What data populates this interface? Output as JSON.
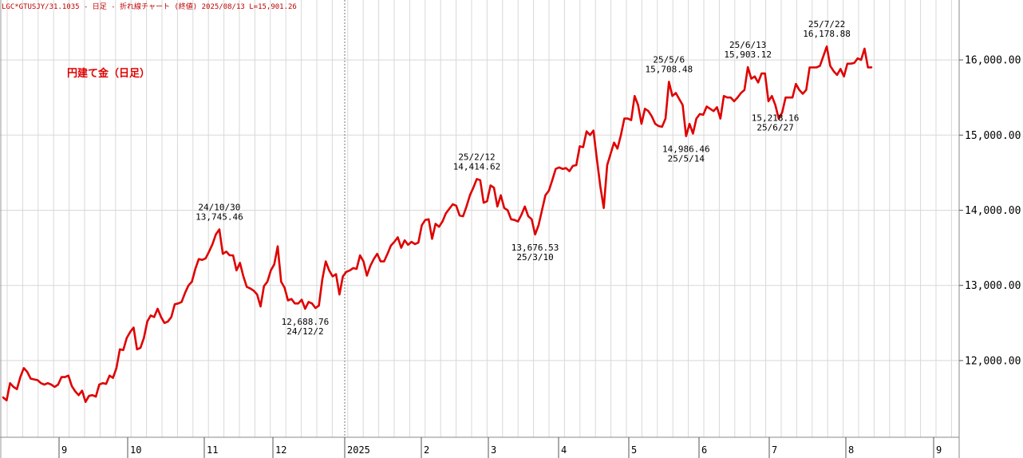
{
  "header": {
    "text": "LGC*GTUSJY/31.1035 - 日足 - 折れ線チャート (終値)  2025/08/13 L=15,901.26"
  },
  "colors": {
    "line": "#e00000",
    "grid": "#d8d8d8",
    "dotted": "#777777",
    "header": "#c00000"
  },
  "chart_data": {
    "type": "line",
    "title": "円建て金（日足）",
    "y_axis": {
      "ticks": [
        "12,000.00",
        "13,000.00",
        "14,000.00",
        "15,000.00",
        "16,000.00"
      ],
      "ylim": [
        11000,
        16850
      ]
    },
    "x_axis": {
      "ticks": [
        "9",
        "10",
        "11",
        "12",
        "2025",
        "2",
        "3",
        "4",
        "5",
        "6",
        "7",
        "8",
        "9"
      ]
    },
    "grid": true,
    "series": [
      {
        "values": [
          11510,
          11470,
          11700,
          11650,
          11620,
          11780,
          11900,
          11850,
          11760,
          11750,
          11740,
          11700,
          11680,
          11700,
          11680,
          11650,
          11680,
          11780,
          11780,
          11800,
          11660,
          11590,
          11540,
          11600,
          11450,
          11530,
          11540,
          11520,
          11680,
          11700,
          11690,
          11800,
          11770,
          11900,
          12150,
          12140,
          12300,
          12380,
          12440,
          12150,
          12170,
          12300,
          12520,
          12600,
          12580,
          12690,
          12580,
          12500,
          12520,
          12580,
          12750,
          12760,
          12780,
          12900,
          13000,
          13050,
          13220,
          13350,
          13340,
          13360,
          13450,
          13550,
          13680,
          13745,
          13420,
          13450,
          13400,
          13400,
          13200,
          13300,
          13120,
          12980,
          12960,
          12930,
          12880,
          12720,
          12990,
          13050,
          13200,
          13280,
          13520,
          13050,
          12970,
          12800,
          12820,
          12760,
          12760,
          12810,
          12689,
          12780,
          12760,
          12700,
          12730,
          13080,
          13320,
          13200,
          13120,
          13150,
          12880,
          13120,
          13180,
          13200,
          13230,
          13220,
          13400,
          13320,
          13130,
          13260,
          13350,
          13420,
          13320,
          13320,
          13420,
          13530,
          13580,
          13640,
          13500,
          13600,
          13540,
          13580,
          13550,
          13570,
          13800,
          13870,
          13880,
          13620,
          13820,
          13780,
          13850,
          13960,
          14020,
          14080,
          14060,
          13930,
          13920,
          14050,
          14200,
          14300,
          14415,
          14400,
          14100,
          14120,
          14330,
          14300,
          14050,
          14200,
          14030,
          14000,
          13880,
          13870,
          13850,
          13940,
          14050,
          13920,
          13880,
          13677,
          13800,
          14000,
          14200,
          14260,
          14400,
          14550,
          14570,
          14550,
          14560,
          14520,
          14590,
          14600,
          14850,
          14840,
          15050,
          15000,
          15060,
          14680,
          14320,
          14030,
          14600,
          14750,
          14900,
          14820,
          15000,
          15220,
          15220,
          15200,
          15520,
          15400,
          15150,
          15350,
          15320,
          15250,
          15150,
          15120,
          15110,
          15220,
          15708,
          15520,
          15560,
          15480,
          15400,
          14986,
          15150,
          15020,
          15220,
          15280,
          15270,
          15380,
          15350,
          15320,
          15370,
          15220,
          15520,
          15500,
          15500,
          15450,
          15500,
          15560,
          15600,
          15903,
          15750,
          15780,
          15700,
          15820,
          15820,
          15450,
          15520,
          15400,
          15218,
          15300,
          15500,
          15500,
          15500,
          15680,
          15600,
          15550,
          15600,
          15900,
          15900,
          15900,
          15920,
          16050,
          16179,
          15920,
          15850,
          15800,
          15880,
          15780,
          15950,
          15950,
          15960,
          16020,
          16000,
          16150,
          15900,
          15901
        ]
      }
    ],
    "annotations": [
      {
        "date": "24/10/30",
        "value": "13,745.46",
        "index": 63
      },
      {
        "date": "24/12/2",
        "value": "12,688.76",
        "index": 88
      },
      {
        "date": "25/2/12",
        "value": "14,414.62",
        "index": 138
      },
      {
        "date": "25/3/10",
        "value": "13,676.53",
        "index": 155
      },
      {
        "date": "25/5/6",
        "value": "15,708.48",
        "index": 194
      },
      {
        "date": "25/5/14",
        "value": "14,986.46",
        "index": 199
      },
      {
        "date": "25/6/13",
        "value": "15,903.12",
        "index": 217
      },
      {
        "date": "25/6/27",
        "value": "15,218.16",
        "index": 225
      },
      {
        "date": "25/7/22",
        "value": "16,178.88",
        "index": 240
      }
    ]
  }
}
